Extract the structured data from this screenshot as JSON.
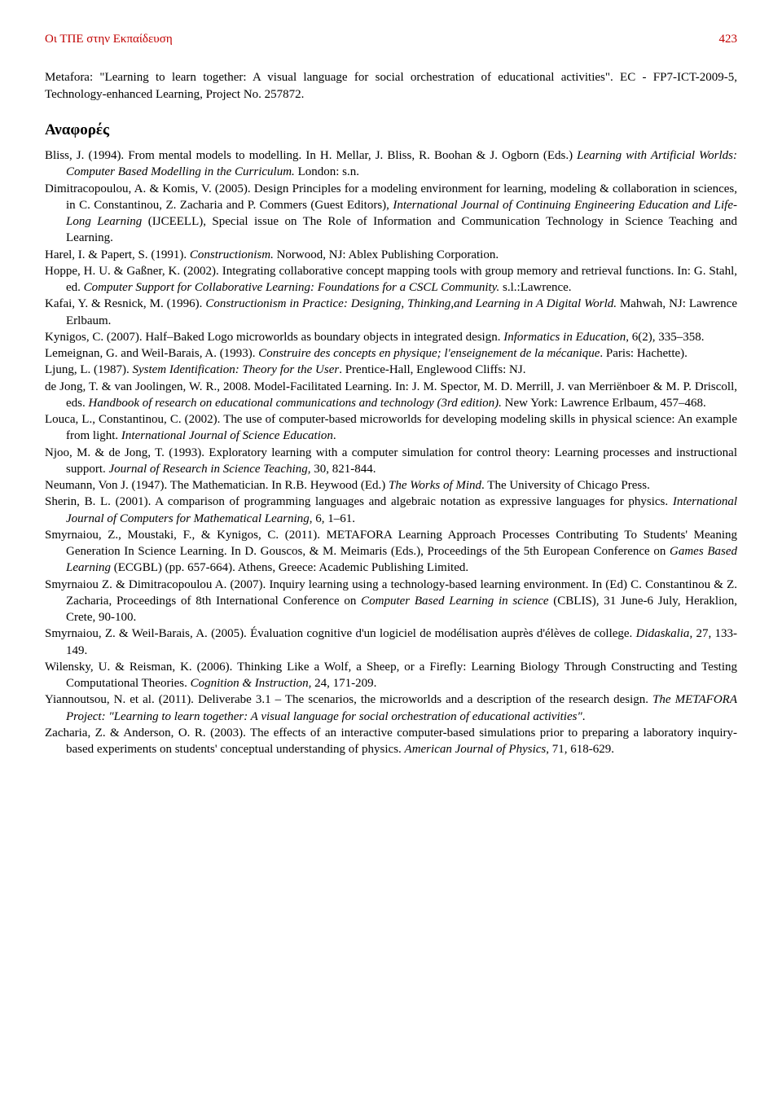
{
  "header": {
    "title": "Οι ΤΠΕ στην Εκπαίδευση",
    "pageNumber": "423"
  },
  "intro": "Metafora: \"Learning to learn together: A visual language for social orchestration of educational activities\". EC - FP7-ICT-2009-5, Technology-enhanced Learning, Project No. 257872.",
  "sectionHeading": "Αναφορές",
  "references": [
    {
      "html": "Bliss, J. (1994). From mental models to modelling. In H. Mellar, J. Bliss, R. Boohan & J. Ogborn (Eds.) <span class=\"italic\">Learning with Artificial Worlds: Computer Based Modelling in the Curriculum.</span> London: s.n."
    },
    {
      "html": "Dimitracopoulou, A. & Komis, V. (2005). Design Principles for a modeling environment for learning, modeling & collaboration in sciences, in C. Constantinou, Z. Zacharia and P. Commers (Guest Editors), <span class=\"italic\">International Journal of Continuing Engineering Education and Life-Long Learning</span> (IJCEELL), Special issue on The Role of Information and Communication Technology in Science Teaching and Learning."
    },
    {
      "html": "Harel, I. & Papert, S. (1991). <span class=\"italic\">Constructionism.</span> Norwood, NJ: Ablex Publishing Corporation."
    },
    {
      "html": "Hoppe, H. U. & Gaßner, K. (2002). Integrating collaborative concept mapping tools with group memory and retrieval functions. In: G. Stahl, ed. <span class=\"italic\">Computer Support for Collaborative Learning: Foundations for a CSCL Community.</span> s.l.:Lawrence."
    },
    {
      "html": "Kafai, Y. & Resnick, M. (1996). <span class=\"italic\">Constructionism in Practice: Designing, Thinking,and Learning in A Digital World.</span> Mahwah, NJ: Lawrence Erlbaum."
    },
    {
      "html": "Kynigos, C. (2007). Half–Baked Logo microworlds as boundary objects in integrated design. <span class=\"italic\">Informatics in Education</span>, 6(2), 335–358."
    },
    {
      "html": "Lemeignan, G. and Weil-Barais, A. (1993). <span class=\"italic\">Construire des concepts en physique; l'enseignement de la mécanique</span>. Paris: Hachette)."
    },
    {
      "html": "Ljung, L. (1987). <span class=\"italic\">System Identification: Theory for the User</span>. Prentice-Hall, Englewood Cliffs: NJ."
    },
    {
      "html": "de Jong, T. & van Joolingen, W. R., 2008. Model-Facilitated Learning. In: J. M. Spector, M. D. Merrill, J. van Merriënboer & M. P. Driscoll, eds. <span class=\"italic\">Handbook of research on educational communications and technology (3rd edition).</span> New York: Lawrence Erlbaum, 457–468."
    },
    {
      "html": "Louca, L., Constantinou, C. (2002). The use of computer-based microworlds for developing modeling skills in physical science: An example from light. <span class=\"italic\">International Journal of Science Education</span>."
    },
    {
      "html": "Njoo, M. & de Jong, T. (1993). Exploratory learning with a computer simulation for control theory: Learning processes and instructional support. <span class=\"italic\">Journal of Research in Science Teaching,</span> 30, 821-844."
    },
    {
      "html": "Neumann, Von J. (1947). The Mathematician. In R.B. Heywood (Ed.) <span class=\"italic\">The Works of Mind</span>. The University of Chicago Press."
    },
    {
      "html": "Sherin, B. L. (2001). A comparison of programming languages and algebraic notation as expressive languages for physics. <span class=\"italic\">International Journal of Computers for Mathematical Learning</span>, 6, 1–61."
    },
    {
      "html": "Smyrnaiou, Z., Moustaki, F., & Kynigos, C. (2011). METAFORA Learning Approach Processes Contributing To Students' Meaning Generation In Science Learning. In D. Gouscos, & M. Meimaris (Eds.), Proceedings of the 5th European Conference on <span class=\"italic\">Games Based Learning</span> (ECGBL) (pp. 657-664). Athens, Greece: Academic Publishing Limited."
    },
    {
      "html": "Smyrnaiou Z. & Dimitracopoulou A. (2007). Inquiry learning using a technology-based learning environment. In (Ed) C. Constantinou & Z. Zacharia, Proceedings of 8th International Conference on <span class=\"italic\">Computer Based Learning in science</span> (CBLIS), 31 June-6 July, Heraklion, Crete, 90-100."
    },
    {
      "html": "Smyrnaiou, Z. & Weil-Barais, A. (2005). Évaluation cognitive d'un logiciel de modélisation auprès d'élèves de college. <span class=\"italic\">Didaskalia</span>, 27, 133-149."
    },
    {
      "html": "Wilensky, U. & Reisman, K. (2006). Thinking Like a Wolf, a Sheep, or a Firefly: Learning Biology Through Constructing and Testing Computational Theories. <span class=\"italic\">Cognition & Instruction,</span> 24, 171-209."
    },
    {
      "html": "Yiannoutsou, N. et al. (2011). Deliverabe 3.1 – The scenarios, the microworlds and a description of the research design. <span class=\"italic\">The METAFORA Project: \"Learning to learn together: A visual language for social orchestration of educational activities\"</span>."
    },
    {
      "html": "Zacharia, Z. & Anderson, O. R. (2003). The effects of an interactive computer-based simulations prior to preparing a laboratory inquiry-based experiments on students' conceptual understanding of physics. <span class=\"italic\">American Journal of Physics,</span> 71, 618-629."
    }
  ]
}
